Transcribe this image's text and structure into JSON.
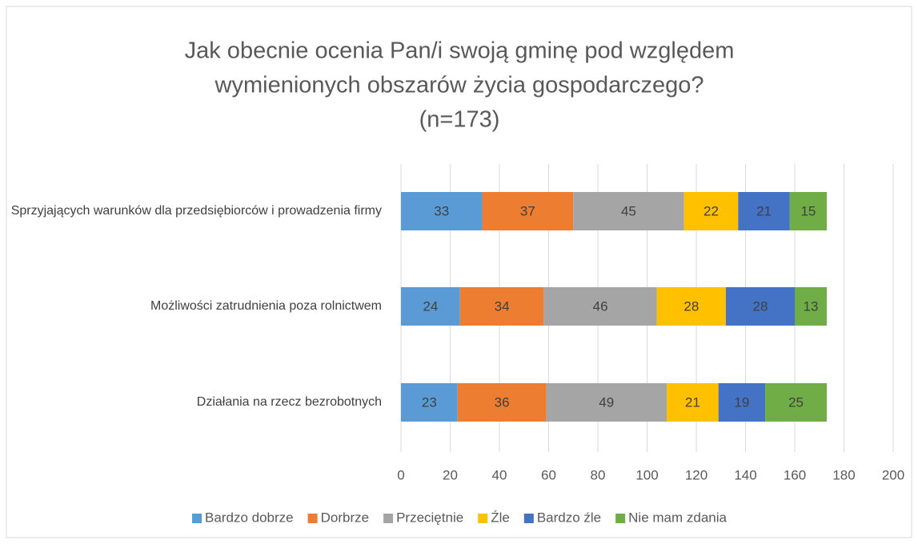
{
  "chart_data": {
    "type": "stacked-bar-horizontal",
    "title": [
      "Jak obecnie ocenia Pan/i swoją gminę pod względem",
      "wymienionych obszarów życia gospodarczego?",
      "(n=173)"
    ],
    "categories": [
      "Sprzyjających warunków dla przedsiębiorców i prowadzenia firmy",
      "Możliwości zatrudnienia poza rolnictwem",
      "Działania na rzecz bezrobotnych"
    ],
    "series": [
      {
        "name": "Bardzo dobrze",
        "color": "#5b9bd5",
        "values": [
          33,
          24,
          23
        ]
      },
      {
        "name": "Dorbrze",
        "color": "#ed7d31",
        "values": [
          37,
          34,
          36
        ]
      },
      {
        "name": "Przeciętnie",
        "color": "#a5a5a5",
        "values": [
          45,
          46,
          49
        ]
      },
      {
        "name": "Źle",
        "color": "#ffc000",
        "values": [
          22,
          28,
          21
        ]
      },
      {
        "name": "Bardzo źle",
        "color": "#4472c4",
        "values": [
          21,
          28,
          19
        ]
      },
      {
        "name": "Nie mam zdania",
        "color": "#70ad47",
        "values": [
          15,
          13,
          25
        ]
      }
    ],
    "xlim": [
      0,
      200
    ],
    "xticks": [
      0,
      20,
      40,
      60,
      80,
      100,
      120,
      140,
      160,
      180,
      200
    ],
    "grid": true,
    "legend": "bottom"
  }
}
